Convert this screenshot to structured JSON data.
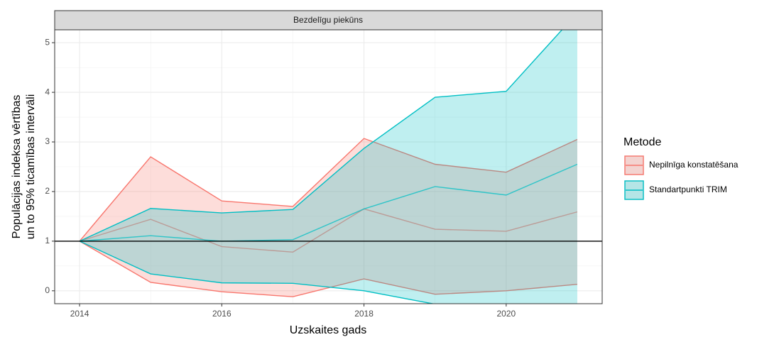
{
  "chart_data": {
    "type": "ribbon-line",
    "strip_title": "Bezdelīgu piekūns",
    "xlabel": "Uzskaites gads",
    "ylabel": [
      "Populācijas indeksa vērtības",
      "un to 95% ticamības intervāli"
    ],
    "legend_title": "Metode",
    "x": [
      2014,
      2015,
      2016,
      2017,
      2018,
      2019,
      2020,
      2021
    ],
    "series": [
      {
        "name": "Nepilnīga konstatēšana",
        "color": "#F8766D",
        "values": [
          1,
          1.44,
          0.89,
          0.78,
          1.65,
          1.24,
          1.2,
          1.59
        ],
        "upper": [
          1,
          2.7,
          1.81,
          1.7,
          3.07,
          2.55,
          2.39,
          3.05
        ],
        "lower": [
          1,
          0.17,
          -0.02,
          -0.12,
          0.24,
          -0.07,
          0.0,
          0.13
        ]
      },
      {
        "name": "Standartpunkti TRIM",
        "color": "#00BFC4",
        "values": [
          1,
          1.11,
          1.0,
          1.03,
          1.65,
          2.1,
          1.93,
          2.55
        ],
        "upper": [
          1,
          1.66,
          1.57,
          1.64,
          2.87,
          3.9,
          4.02,
          5.6
        ],
        "lower": [
          1,
          0.34,
          0.16,
          0.15,
          0.0,
          -0.27,
          -0.5,
          -0.6
        ]
      }
    ],
    "hline": 1,
    "xlim": [
      2013.65,
      2021.35
    ],
    "xticks": [
      2014,
      2016,
      2018,
      2020
    ],
    "ylim": [
      -0.26,
      5.26
    ],
    "yticks": [
      0,
      1,
      2,
      3,
      4,
      5
    ],
    "grid": true
  }
}
